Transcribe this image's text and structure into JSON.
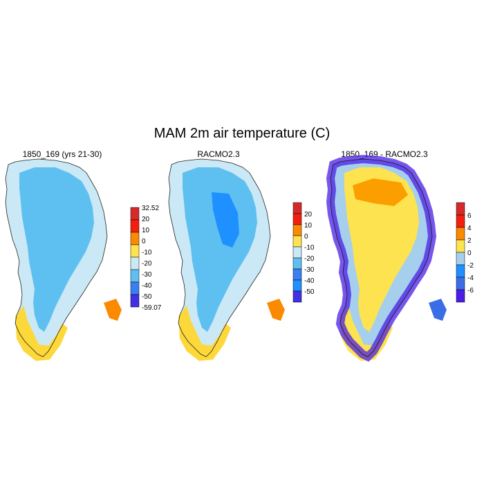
{
  "title": "MAM 2m air temperature (C)",
  "chart_data": [
    {
      "type": "heatmap",
      "title": "1850_169 (yrs 21-30)",
      "colorbar": {
        "labels": [
          "32.52",
          "20",
          "10",
          "0",
          "-10",
          "-20",
          "-30",
          "-40",
          "-50",
          "-59.07"
        ],
        "colors": [
          "#d62a2a",
          "#f4200d",
          "#fb8a00",
          "#fde34f",
          "#cbe8f6",
          "#5ec0f0",
          "#3b7ef2",
          "#4130e6"
        ]
      },
      "field_summary": {
        "interior": -30,
        "margin": -20,
        "south_coast": -10,
        "southeast_tip": 0
      }
    },
    {
      "type": "heatmap",
      "title": "RACMO2.3",
      "colorbar": {
        "labels": [
          "20",
          "10",
          "0",
          "-10",
          "-20",
          "-30",
          "-40",
          "-50"
        ],
        "colors": [
          "#d62a2a",
          "#f4200d",
          "#fb8a00",
          "#fde34f",
          "#cbe8f6",
          "#5ec0f0",
          "#3b7ef2",
          "#1e90ff",
          "#4130e6"
        ]
      },
      "field_summary": {
        "summit": -40,
        "interior": -30,
        "margin": -20,
        "south_coast": -10,
        "southeast_tip": 0
      }
    },
    {
      "type": "heatmap",
      "title": "1850_169 - RACMO2.3",
      "colorbar": {
        "labels": [
          "6",
          "4",
          "2",
          "0",
          "-2",
          "-4",
          "-6"
        ],
        "colors": [
          "#d62a2a",
          "#f4200d",
          "#fb8a00",
          "#fde34f",
          "#a6cfee",
          "#1e90ff",
          "#3b6ee6",
          "#4a1ee6"
        ]
      },
      "field_summary": {
        "north_interior": 3,
        "interior": 1,
        "margin": -1,
        "coast": -7
      }
    }
  ]
}
